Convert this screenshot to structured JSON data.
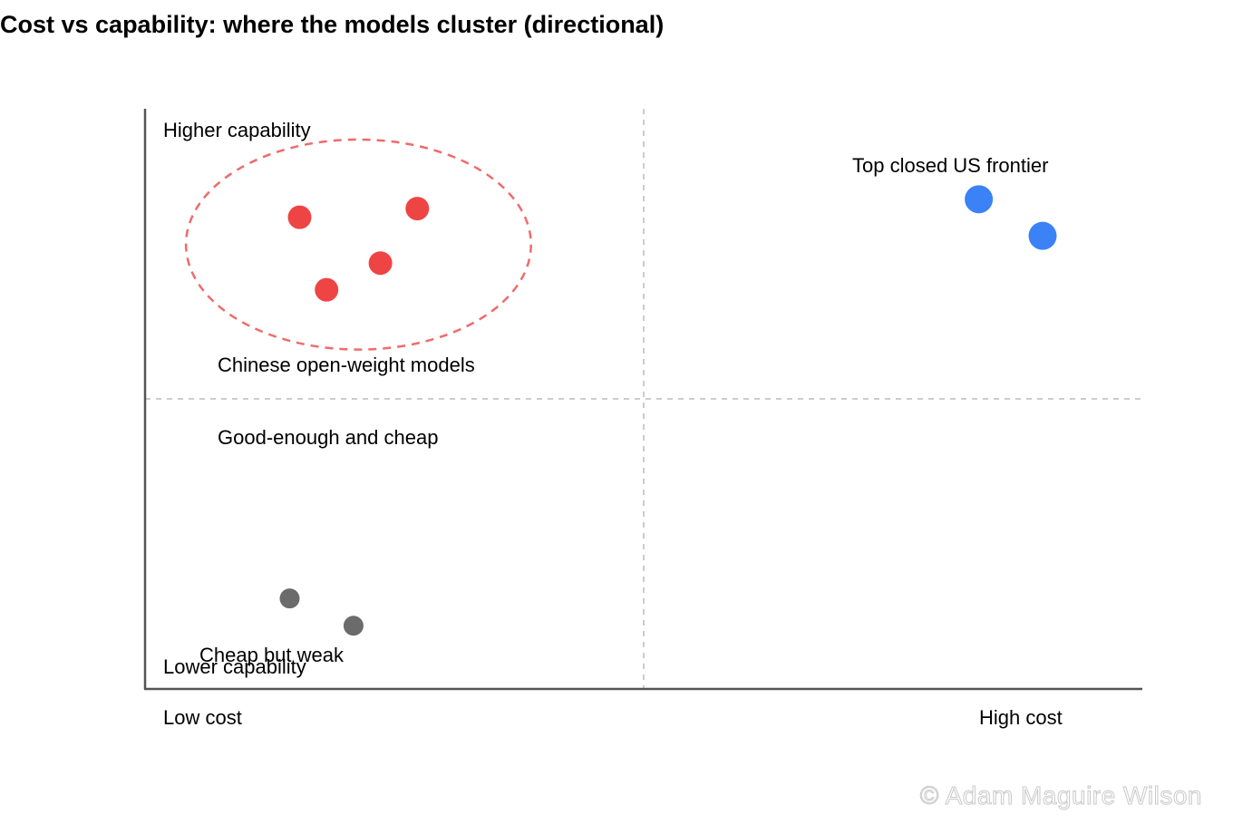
{
  "chart_data": {
    "type": "scatter",
    "title": "Cost vs capability: where the models cluster (directional)",
    "axes": {
      "x_low_label": "Low cost",
      "x_high_label": "High cost",
      "y_high_label": "Higher capability",
      "y_low_label": "Lower capability"
    },
    "xlim": [
      0,
      100
    ],
    "ylim": [
      0,
      100
    ],
    "divider_x": 50,
    "divider_y": 50,
    "grid": false,
    "series": [
      {
        "key": "chinese",
        "color": "#ef4444",
        "points": [
          {
            "x": 15.5,
            "y": 81.3
          },
          {
            "x": 27.3,
            "y": 82.8
          },
          {
            "x": 23.6,
            "y": 73.4
          },
          {
            "x": 18.2,
            "y": 68.8
          }
        ]
      },
      {
        "key": "us",
        "color": "#3b82f6",
        "points": [
          {
            "x": 83.6,
            "y": 84.4
          },
          {
            "x": 90.0,
            "y": 78.1
          }
        ]
      },
      {
        "key": "cheap",
        "color": "#6b6b6b",
        "points": [
          {
            "x": 14.5,
            "y": 15.6
          },
          {
            "x": 20.9,
            "y": 10.9
          }
        ]
      }
    ],
    "annotations": {
      "chinese_label": "Chinese open-weight models",
      "us_label": "Top closed US frontier",
      "good_enough_label": "Good-enough and cheap",
      "cheap_label": "Cheap but weak"
    },
    "cluster_highlight": {
      "color": "#ef6b6b",
      "center": {
        "x": 21.4,
        "y": 76.6
      },
      "radius_x": 17.3,
      "radius_y": 18.1
    }
  },
  "watermark": "© Adam Maguire Wilson"
}
